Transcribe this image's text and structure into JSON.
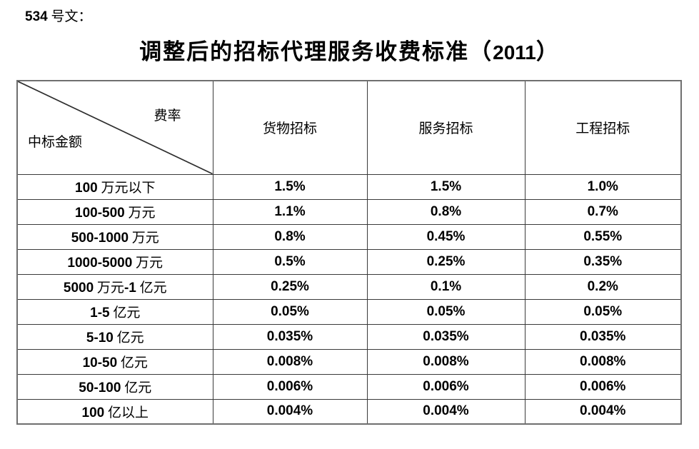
{
  "doc_label": "534 号文：",
  "title": "调整后的招标代理服务收费标准（2011）",
  "table": {
    "corner": {
      "top_right": "费率",
      "bottom_left": "中标金额"
    },
    "columns": [
      "货物招标",
      "服务招标",
      "工程招标"
    ],
    "rows": [
      {
        "label": "100 万元以下",
        "values": [
          "1.5%",
          "1.5%",
          "1.0%"
        ]
      },
      {
        "label": "100-500 万元",
        "values": [
          "1.1%",
          "0.8%",
          "0.7%"
        ]
      },
      {
        "label": "500-1000 万元",
        "values": [
          "0.8%",
          "0.45%",
          "0.55%"
        ]
      },
      {
        "label": "1000-5000 万元",
        "values": [
          "0.5%",
          "0.25%",
          "0.35%"
        ]
      },
      {
        "label": "5000 万元-1 亿元",
        "values": [
          "0.25%",
          "0.1%",
          "0.2%"
        ]
      },
      {
        "label": "1-5 亿元",
        "values": [
          "0.05%",
          "0.05%",
          "0.05%"
        ]
      },
      {
        "label": "5-10 亿元",
        "values": [
          "0.035%",
          "0.035%",
          "0.035%"
        ]
      },
      {
        "label": "10-50 亿元",
        "values": [
          "0.008%",
          "0.008%",
          "0.008%"
        ]
      },
      {
        "label": "50-100 亿元",
        "values": [
          "0.006%",
          "0.006%",
          "0.006%"
        ]
      },
      {
        "label": "100 亿以上",
        "values": [
          "0.004%",
          "0.004%",
          "0.004%"
        ]
      }
    ]
  },
  "colors": {
    "outer-border": "#6f6f6f",
    "grid": "#3a3a3a",
    "text": "#000000",
    "bg": "#ffffff"
  }
}
